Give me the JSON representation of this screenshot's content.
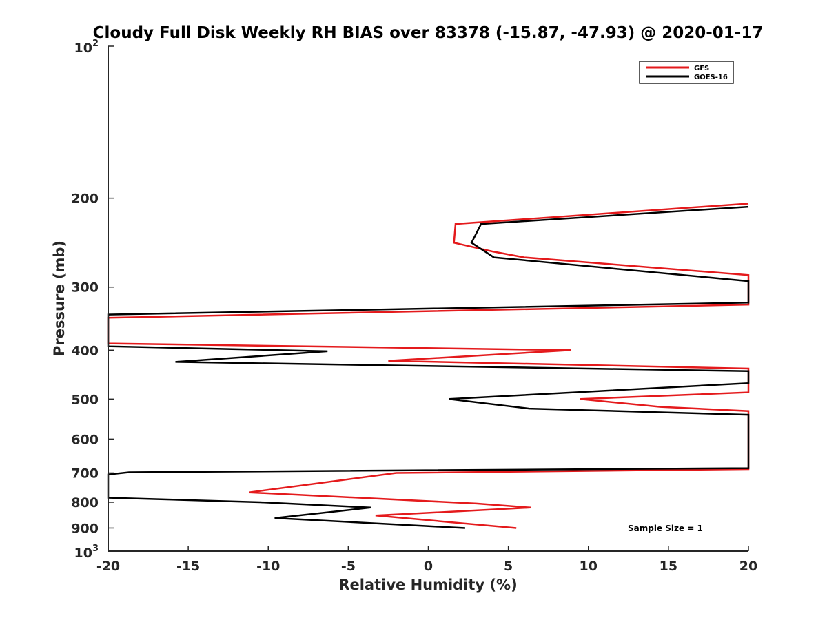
{
  "chart_data": {
    "type": "line",
    "title": "Cloudy Full Disk Weekly RH BIAS over 83378 (-15.87, -47.93) @ 2020-01-17",
    "xlabel": "Relative Humidity (%)",
    "ylabel": "Pressure (mb)",
    "xlim": [
      -20,
      20
    ],
    "ylim": [
      100,
      1000
    ],
    "yscale": "log",
    "y_reversed": true,
    "xticks": [
      -20,
      -15,
      -10,
      -5,
      0,
      5,
      10,
      15,
      20
    ],
    "xtick_labels": [
      "-20",
      "-15",
      "-10",
      "-5",
      "0",
      "5",
      "10",
      "15",
      "20"
    ],
    "yticks": [
      200,
      300,
      400,
      500,
      600,
      700,
      800,
      900
    ],
    "ytick_labels": [
      "200",
      "300",
      "400",
      "500",
      "600",
      "700",
      "800",
      "900"
    ],
    "ylim_labels": {
      "top_base": "10",
      "top_exp": "2",
      "bottom_base": "10",
      "bottom_exp": "3"
    },
    "grid": false,
    "legend_position": "top-right",
    "annotation": "Sample Size = 1",
    "series": [
      {
        "name": "GFS",
        "color": "#e41a1c",
        "points": [
          [
            20,
            205
          ],
          [
            1.7,
            225
          ],
          [
            1.6,
            245
          ],
          [
            4,
            255
          ],
          [
            6,
            262
          ],
          [
            20,
            284
          ],
          [
            20,
            325
          ],
          [
            -20,
            345
          ],
          [
            -20,
            388
          ],
          [
            8.9,
            400
          ],
          [
            -2.5,
            420
          ],
          [
            20,
            435
          ],
          [
            20,
            485
          ],
          [
            9.5,
            500
          ],
          [
            14.5,
            518
          ],
          [
            20,
            528
          ],
          [
            20,
            688
          ],
          [
            -2,
            700
          ],
          [
            -11.2,
            765
          ],
          [
            3,
            805
          ],
          [
            6.4,
            820
          ],
          [
            -3.3,
            850
          ],
          [
            5.5,
            900
          ]
        ]
      },
      {
        "name": "GOES-16",
        "color": "#000000",
        "points": [
          [
            20,
            208
          ],
          [
            3.3,
            225
          ],
          [
            2.7,
            245
          ],
          [
            4.1,
            262
          ],
          [
            20,
            292
          ],
          [
            20,
            322
          ],
          [
            -20,
            340
          ],
          [
            -20,
            393
          ],
          [
            -6.3,
            402
          ],
          [
            -15.8,
            422
          ],
          [
            20,
            440
          ],
          [
            20,
            465
          ],
          [
            1.3,
            500
          ],
          [
            6.3,
            522
          ],
          [
            20,
            537
          ],
          [
            20,
            685
          ],
          [
            -18.7,
            698
          ],
          [
            -20,
            705
          ],
          [
            -20,
            784
          ],
          [
            -10.5,
            800
          ],
          [
            -3.6,
            820
          ],
          [
            -9.6,
            860
          ],
          [
            2.3,
            900
          ]
        ]
      }
    ]
  }
}
